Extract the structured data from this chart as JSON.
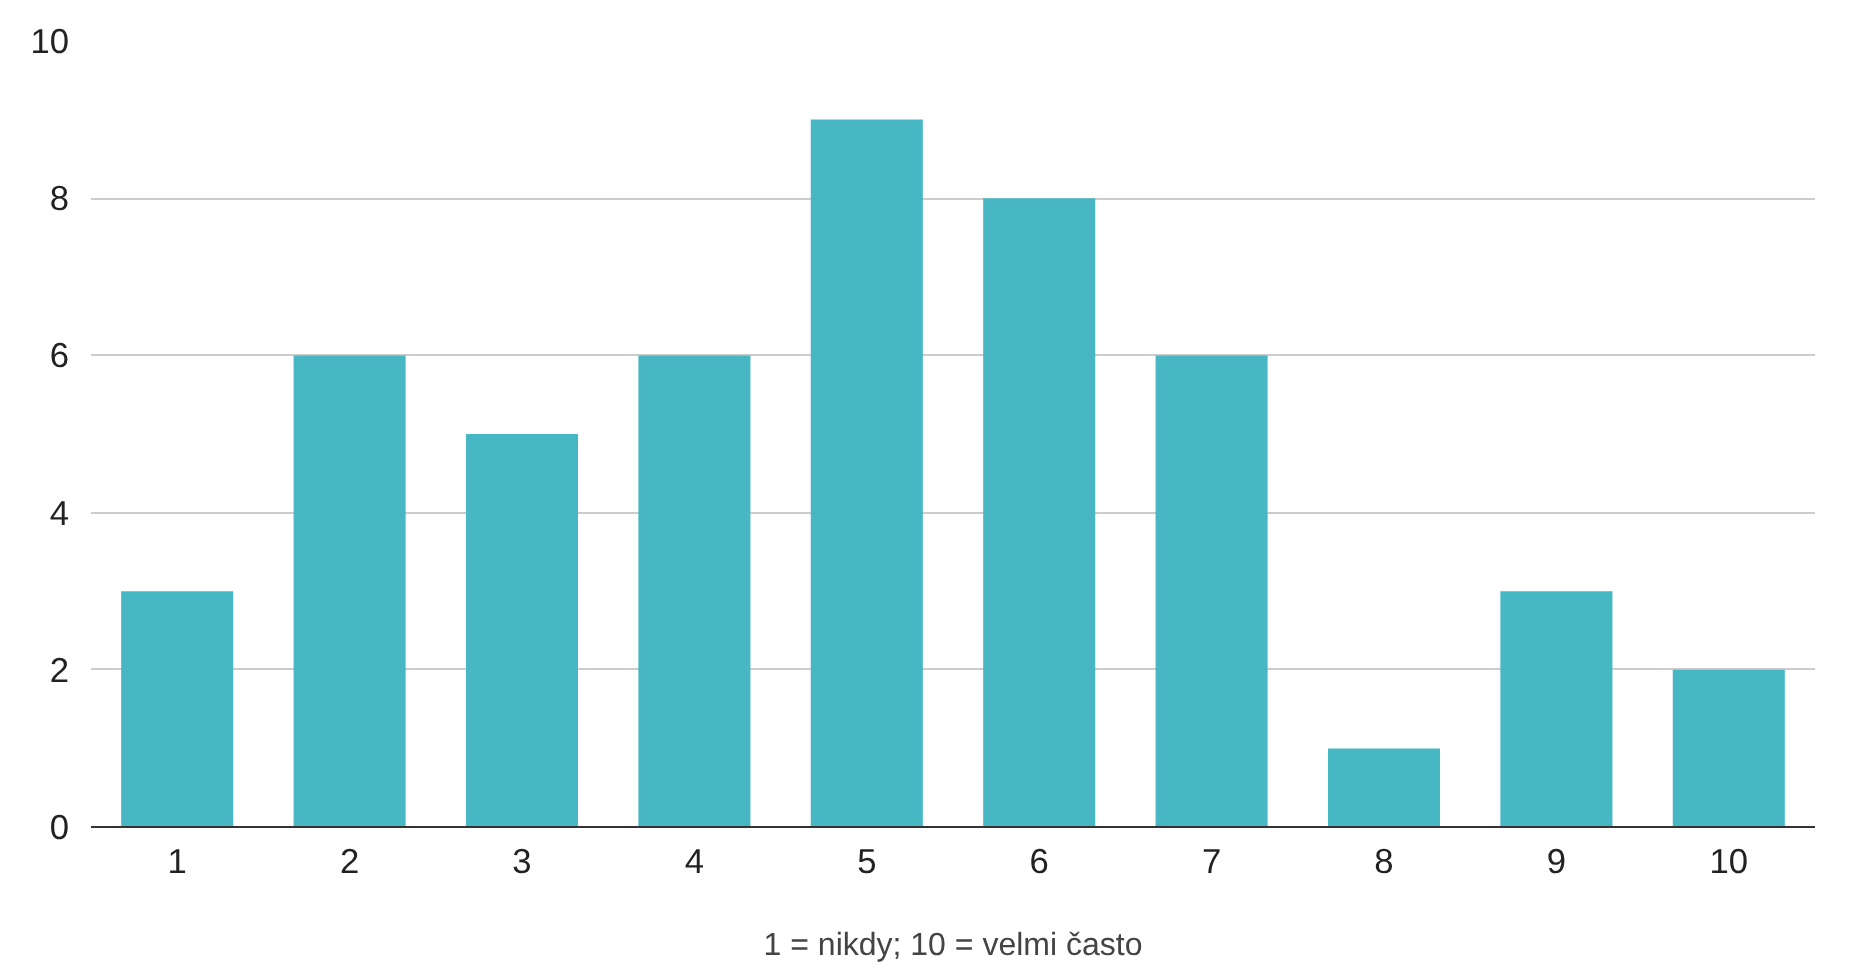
{
  "chart_data": {
    "type": "bar",
    "xlabel": "1 = nikdy; 10 = velmi často",
    "categories": [
      "1",
      "2",
      "3",
      "4",
      "5",
      "6",
      "7",
      "8",
      "9",
      "10"
    ],
    "values": [
      3,
      6,
      5,
      6,
      9,
      8,
      6,
      1,
      3,
      2
    ],
    "color": "#47b8c3",
    "ylim": [
      0,
      10
    ],
    "yticks": [
      0,
      2,
      4,
      6,
      8,
      10
    ],
    "grid": "y"
  }
}
